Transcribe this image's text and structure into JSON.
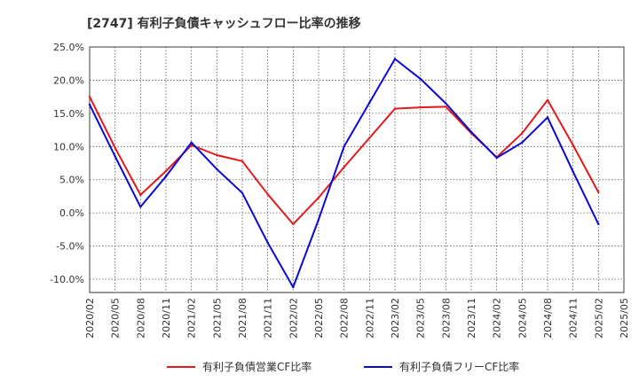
{
  "chart_data": {
    "type": "line",
    "title": "[2747]  有利子負債キャッシュフロー比率の推移",
    "xlabel": "",
    "ylabel": "",
    "x": [
      "2020/02",
      "2020/05",
      "2020/08",
      "2020/11",
      "2021/02",
      "2021/05",
      "2021/08",
      "2021/11",
      "2022/02",
      "2022/05",
      "2022/08",
      "2022/11",
      "2023/02",
      "2023/05",
      "2023/08",
      "2023/11",
      "2024/02",
      "2024/05",
      "2024/08",
      "2024/11",
      "2025/02",
      "2025/05"
    ],
    "y_ticks": [
      "25.0%",
      "20.0%",
      "15.0%",
      "10.0%",
      "5.0%",
      "0.0%",
      "-5.0%",
      "-10.0%"
    ],
    "ylim": [
      -12,
      25
    ],
    "grid": true,
    "legend_position": "bottom",
    "series": [
      {
        "name": "有利子負債営業CF比率",
        "color": "#e31a1c",
        "values": [
          17.5,
          9.8,
          2.7,
          6.3,
          10.2,
          8.7,
          7.8,
          2.8,
          -1.7,
          2.3,
          6.9,
          11.3,
          15.7,
          15.9,
          16.0,
          12.0,
          8.4,
          12.0,
          17.0,
          10.2,
          3.1,
          null
        ]
      },
      {
        "name": "有利子負債フリーCF比率",
        "color": "#0a0ad2",
        "values": [
          16.3,
          8.5,
          0.9,
          5.5,
          10.6,
          6.6,
          3.0,
          -4.5,
          -11.2,
          -1.0,
          10.0,
          16.6,
          23.2,
          20.2,
          16.5,
          12.2,
          8.3,
          10.6,
          14.4,
          6.2,
          -1.7,
          null
        ]
      }
    ]
  }
}
